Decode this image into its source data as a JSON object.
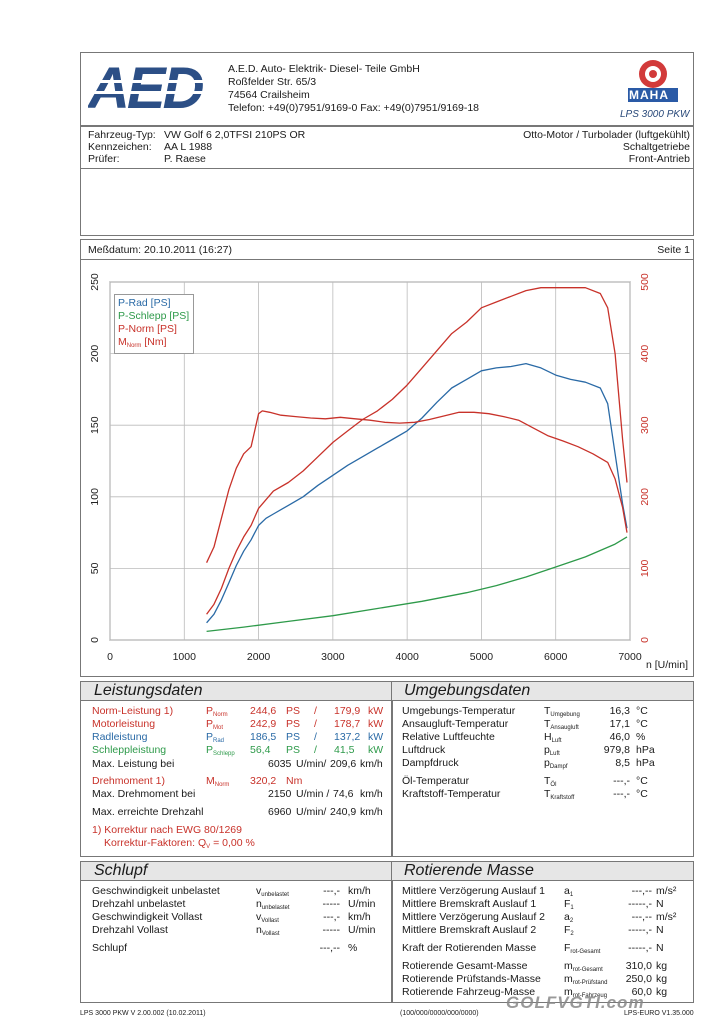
{
  "header": {
    "logo_text": "AED",
    "company": "A.E.D. Auto- Elektrik- Diesel- Teile GmbH",
    "street": "Roßfelder Str. 65/3",
    "city": "74564 Crailsheim",
    "phone": "Telefon: +49(0)7951/9169-0 Fax: +49(0)7951/9169-18",
    "maha_brand": "MAHA",
    "maha_model": "LPS 3000 PKW"
  },
  "vehicle": {
    "type_label": "Fahrzeug-Typ:",
    "type_value": "VW Golf 6 2,0TFSI 210PS OR",
    "plate_label": "Kennzeichen:",
    "plate_value": "AA L 1988",
    "tester_label": "Prüfer:",
    "tester_value": "P. Raese",
    "engine": "Otto-Motor / Turbolader (luftgekühlt)",
    "gearbox": "Schaltgetriebe",
    "drive": "Front-Antrieb"
  },
  "measure": {
    "date": "Meßdatum: 20.10.2011 (16:27)",
    "page": "Seite 1"
  },
  "chart_data": {
    "type": "line",
    "xlabel": "n [U/min]",
    "xlim": [
      0,
      7000
    ],
    "ylim_left": [
      0,
      250
    ],
    "ylim_right": [
      0,
      500
    ],
    "x_ticks": [
      "0",
      "1000",
      "2000",
      "3000",
      "4000",
      "5000",
      "6000",
      "7000"
    ],
    "y_ticks_left": [
      "0",
      "50",
      "100",
      "150",
      "200",
      "250"
    ],
    "y_ticks_right": [
      "0",
      "100",
      "200",
      "300",
      "400",
      "500"
    ],
    "legend": [
      "P-Rad [PS]",
      "P-Schlepp [PS]",
      "P-Norm [PS]",
      "M [Nm]"
    ],
    "legend_sub": "Norm",
    "legend_position": "top-left",
    "grid": true,
    "series": [
      {
        "name": "P-Rad [PS]",
        "color": "#2a6aa6",
        "axis": "left",
        "x": [
          1300,
          1400,
          1500,
          1600,
          1700,
          1800,
          1900,
          2000,
          2100,
          2200,
          2400,
          2600,
          2800,
          3000,
          3200,
          3400,
          3600,
          3800,
          4000,
          4200,
          4400,
          4600,
          4800,
          5000,
          5200,
          5400,
          5600,
          5800,
          6000,
          6200,
          6400,
          6600,
          6700,
          6800,
          6900,
          6960
        ],
        "y": [
          12,
          18,
          28,
          40,
          52,
          62,
          70,
          80,
          85,
          88,
          94,
          100,
          108,
          115,
          122,
          128,
          134,
          140,
          146,
          155,
          166,
          176,
          182,
          188,
          190,
          191,
          193,
          190,
          185,
          182,
          180,
          176,
          165,
          130,
          95,
          78
        ]
      },
      {
        "name": "P-Schlepp [PS]",
        "color": "#2e9a4a",
        "axis": "left",
        "x": [
          1300,
          1800,
          2400,
          3000,
          3600,
          4200,
          4800,
          5200,
          5600,
          6000,
          6400,
          6800,
          6960
        ],
        "y": [
          6,
          9,
          13,
          17,
          22,
          27,
          33,
          38,
          44,
          51,
          58,
          67,
          72
        ]
      },
      {
        "name": "P-Norm [PS]",
        "color": "#c8322a",
        "axis": "left",
        "x": [
          1300,
          1400,
          1500,
          1600,
          1700,
          1800,
          1900,
          2000,
          2100,
          2200,
          2400,
          2600,
          2800,
          3000,
          3200,
          3400,
          3600,
          3800,
          4000,
          4200,
          4400,
          4600,
          4800,
          5000,
          5200,
          5400,
          5600,
          5800,
          6000,
          6200,
          6400,
          6600,
          6700,
          6800,
          6900,
          6960
        ],
        "y": [
          18,
          25,
          36,
          50,
          62,
          72,
          80,
          92,
          98,
          104,
          110,
          118,
          128,
          138,
          146,
          154,
          160,
          168,
          178,
          190,
          202,
          214,
          222,
          232,
          236,
          240,
          244,
          246,
          246,
          246,
          246,
          242,
          232,
          200,
          140,
          110
        ]
      },
      {
        "name": "M [Nm]",
        "color": "#c8322a",
        "axis": "right",
        "x": [
          1300,
          1400,
          1500,
          1600,
          1700,
          1800,
          1900,
          2000,
          2050,
          2150,
          2300,
          2500,
          2700,
          2900,
          3100,
          3300,
          3500,
          3700,
          3900,
          4100,
          4300,
          4500,
          4700,
          4900,
          5100,
          5300,
          5500,
          5700,
          5900,
          6100,
          6300,
          6500,
          6700,
          6800,
          6900,
          6960
        ],
        "y": [
          108,
          130,
          170,
          210,
          240,
          260,
          270,
          316,
          320,
          318,
          314,
          312,
          310,
          309,
          311,
          309,
          307,
          304,
          303,
          304,
          308,
          313,
          318,
          318,
          316,
          312,
          307,
          296,
          285,
          278,
          270,
          260,
          248,
          225,
          185,
          150
        ]
      }
    ]
  },
  "leistung": {
    "title": "Leistungsdaten",
    "rows": [
      {
        "label": "Norm-Leistung 1)",
        "sym": "P",
        "sub": "Norm",
        "v1": "244,6",
        "u1": "PS",
        "sep": "/",
        "v2": "179,9",
        "u2": "kW",
        "cls": "red"
      },
      {
        "label": "Motorleistung",
        "sym": "P",
        "sub": "Mot",
        "v1": "242,9",
        "u1": "PS",
        "sep": "/",
        "v2": "178,7",
        "u2": "kW",
        "cls": "red"
      },
      {
        "label": "Radleistung",
        "sym": "P",
        "sub": "Rad",
        "v1": "186,5",
        "u1": "PS",
        "sep": "/",
        "v2": "137,2",
        "u2": "kW",
        "cls": "blue"
      },
      {
        "label": "Schleppleistung",
        "sym": "P",
        "sub": "Schlepp",
        "v1": "56,4",
        "u1": "PS",
        "sep": "/",
        "v2": "41,5",
        "u2": "kW",
        "cls": "green"
      }
    ],
    "max_leistung_label": "Max. Leistung bei",
    "max_leistung_v1": "6035",
    "max_leistung_u1": "U/min/",
    "max_leistung_v2": "209,6",
    "max_leistung_u2": "km/h",
    "dreh_label": "Drehmoment 1)",
    "dreh_sym": "M",
    "dreh_sub": "Norm",
    "dreh_v": "320,2",
    "dreh_u": "Nm",
    "max_dreh_label": "Max. Drehmoment bei",
    "max_dreh_v1": "2150",
    "max_dreh_u1": "U/min /",
    "max_dreh_v2": "74,6",
    "max_dreh_u2": "km/h",
    "max_drehzahl_label": "Max. erreichte Drehzahl",
    "max_drehzahl_v1": "6960",
    "max_drehzahl_u1": "U/min/",
    "max_drehzahl_v2": "240,9",
    "max_drehzahl_u2": "km/h",
    "note1": "1) Korrektur nach EWG 80/1269",
    "note2": "Korrektur-Faktoren: Q",
    "note2_sub": "V",
    "note2_val": "= 0,00 %"
  },
  "umgebung": {
    "title": "Umgebungsdaten",
    "rows": [
      {
        "label": "Umgebungs-Temperatur",
        "sym": "T",
        "sub": "Umgebung",
        "v": "16,3",
        "u": "°C"
      },
      {
        "label": "Ansaugluft-Temperatur",
        "sym": "T",
        "sub": "Ansaugluft",
        "v": "17,1",
        "u": "°C"
      },
      {
        "label": "Relative Luftfeuchte",
        "sym": "H",
        "sub": "Luft",
        "v": "46,0",
        "u": "%"
      },
      {
        "label": "Luftdruck",
        "sym": "p",
        "sub": "Luft",
        "v": "979,8",
        "u": "hPa"
      },
      {
        "label": "Dampfdruck",
        "sym": "p",
        "sub": "Dampf",
        "v": "8,5",
        "u": "hPa"
      },
      {
        "label": "Öl-Temperatur",
        "sym": "T",
        "sub": "Öl",
        "v": "---,-",
        "u": "°C"
      },
      {
        "label": "Kraftstoff-Temperatur",
        "sym": "T",
        "sub": "Kraftstoff",
        "v": "---,-",
        "u": "°C"
      }
    ]
  },
  "schlupf": {
    "title": "Schlupf",
    "rows": [
      {
        "label": "Geschwindigkeit unbelastet",
        "sym": "v",
        "sub": "unbelastet",
        "v": "---,-",
        "u": "km/h"
      },
      {
        "label": "Drehzahl unbelastet",
        "sym": "n",
        "sub": "unbelastet",
        "v": "-----",
        "u": "U/min"
      },
      {
        "label": "Geschwindigkeit Vollast",
        "sym": "v",
        "sub": "Vollast",
        "v": "---,-",
        "u": "km/h"
      },
      {
        "label": "Drehzahl Vollast",
        "sym": "n",
        "sub": "Vollast",
        "v": "-----",
        "u": "U/min"
      },
      {
        "label": "Schlupf",
        "sym": "",
        "sub": "",
        "v": "---,--",
        "u": "%"
      }
    ]
  },
  "rotierend": {
    "title": "Rotierende Masse",
    "rows": [
      {
        "label": "Mittlere Verzögerung Auslauf 1",
        "sym": "a",
        "sub": "1",
        "v": "---,--",
        "u": "m/s²"
      },
      {
        "label": "Mittlere Bremskraft Auslauf 1",
        "sym": "F",
        "sub": "1",
        "v": "-----,-",
        "u": "N"
      },
      {
        "label": "Mittlere Verzögerung Auslauf 2",
        "sym": "a",
        "sub": "2",
        "v": "---,--",
        "u": "m/s²"
      },
      {
        "label": "Mittlere Bremskraft Auslauf 2",
        "sym": "F",
        "sub": "2",
        "v": "-----,-",
        "u": "N"
      },
      {
        "label": "Kraft der Rotierenden Masse",
        "sym": "F",
        "sub": "rot-Gesamt",
        "v": "-----,-",
        "u": "N"
      },
      {
        "label": "Rotierende Gesamt-Masse",
        "sym": "m",
        "sub": "rot-Gesamt",
        "v": "310,0",
        "u": "kg"
      },
      {
        "label": "Rotierende Prüfstands-Masse",
        "sym": "m",
        "sub": "rot-Prüfstand",
        "v": "250,0",
        "u": "kg"
      },
      {
        "label": "Rotierende Fahrzeug-Masse",
        "sym": "m",
        "sub": "rot-Fahrzeug",
        "v": "60,0",
        "u": "kg"
      }
    ]
  },
  "footer": {
    "left": "LPS 3000 PKW V 2.00.002 (10.02.2011)",
    "center": "(100/000/0000/000/0000)",
    "right": "LPS-EURO V1.35.000",
    "watermark": "GOLFVGTI.com"
  }
}
